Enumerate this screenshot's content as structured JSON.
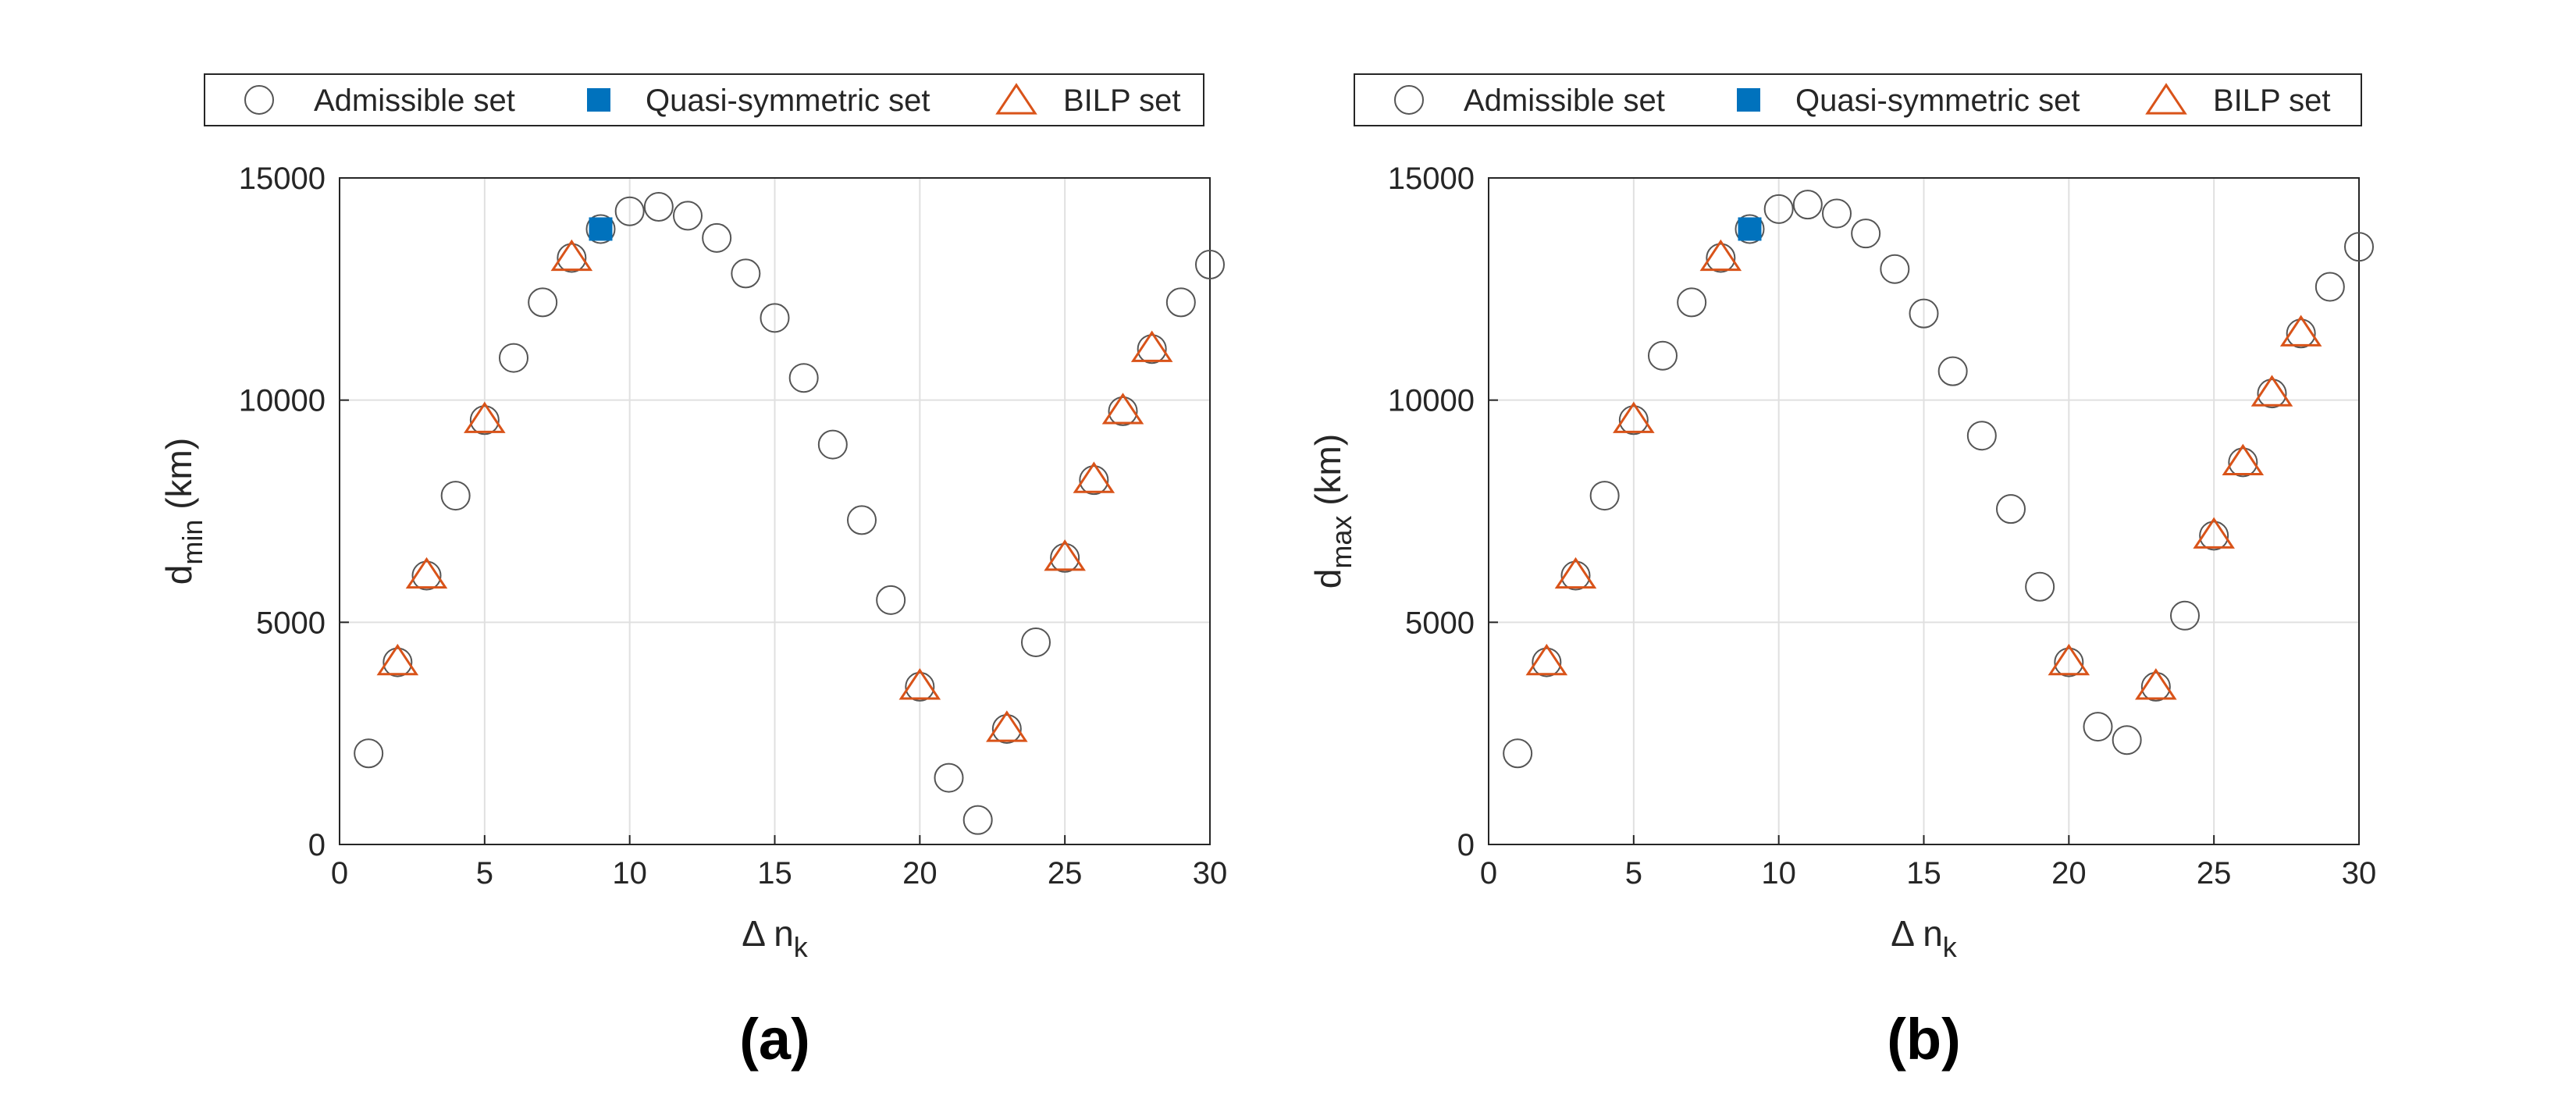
{
  "colors": {
    "admissible_edge": "#555555",
    "quasi_fill": "#0072BD",
    "bilp_edge": "#D95319",
    "grid": "#e0e0e0",
    "axis": "#262626"
  },
  "chart_data": [
    {
      "type": "scatter",
      "panel_label": "(a)",
      "xlabel": {
        "main": "Δ n",
        "sub": "k"
      },
      "ylabel": {
        "main": "d",
        "sub": "min",
        "rest": " (km)"
      },
      "xlim": [
        0,
        30
      ],
      "ylim": [
        0,
        15000
      ],
      "xticks": [
        "0",
        "5",
        "10",
        "15",
        "20",
        "25",
        "30"
      ],
      "yticks": [
        "0",
        "5000",
        "10000",
        "15000"
      ],
      "grid": true,
      "legend": {
        "placement": "top",
        "entries": [
          "Admissible set",
          "Quasi-symmetric set",
          "BILP set"
        ]
      },
      "series": [
        {
          "name": "Admissible set",
          "marker": "circle",
          "x": [
            1,
            2,
            3,
            4,
            5,
            6,
            7,
            8,
            9,
            10,
            11,
            12,
            13,
            14,
            15,
            16,
            17,
            18,
            19,
            20,
            21,
            22,
            23,
            24,
            25,
            26,
            27,
            28,
            29,
            30
          ],
          "y": [
            2050,
            4100,
            6050,
            7850,
            9550,
            10950,
            12200,
            13200,
            13850,
            14250,
            14350,
            14150,
            13650,
            12850,
            11850,
            10500,
            9000,
            7300,
            5500,
            3550,
            1500,
            550,
            2600,
            4550,
            6450,
            8200,
            9750,
            11150,
            12200,
            13050
          ]
        },
        {
          "name": "Quasi-symmetric set",
          "marker": "square",
          "x": [
            9
          ],
          "y": [
            13850
          ]
        },
        {
          "name": "BILP set",
          "marker": "triangle",
          "x": [
            2,
            3,
            5,
            8,
            20,
            23,
            25,
            26,
            27,
            28
          ],
          "y": [
            4100,
            6050,
            9550,
            13200,
            3550,
            2600,
            6450,
            8200,
            9750,
            11150
          ]
        }
      ]
    },
    {
      "type": "scatter",
      "panel_label": "(b)",
      "xlabel": {
        "main": "Δ n",
        "sub": "k"
      },
      "ylabel": {
        "main": "d",
        "sub": "max",
        "rest": " (km)"
      },
      "xlim": [
        0,
        30
      ],
      "ylim": [
        0,
        15000
      ],
      "xticks": [
        "0",
        "5",
        "10",
        "15",
        "20",
        "25",
        "30"
      ],
      "yticks": [
        "0",
        "5000",
        "10000",
        "15000"
      ],
      "grid": true,
      "legend": {
        "placement": "top",
        "entries": [
          "Admissible set",
          "Quasi-symmetric set",
          "BILP set"
        ]
      },
      "series": [
        {
          "name": "Admissible set",
          "marker": "circle",
          "x": [
            1,
            2,
            3,
            4,
            5,
            6,
            7,
            8,
            9,
            10,
            11,
            12,
            13,
            14,
            15,
            16,
            17,
            18,
            19,
            20,
            21,
            22,
            23,
            24,
            25,
            26,
            27,
            28,
            29,
            30
          ],
          "y": [
            2050,
            4100,
            6050,
            7850,
            9550,
            11000,
            12200,
            13200,
            13850,
            14300,
            14400,
            14200,
            13750,
            12950,
            11950,
            10650,
            9200,
            7550,
            5800,
            4100,
            2650,
            2350,
            3550,
            5150,
            6950,
            8600,
            10150,
            11500,
            12550,
            13450
          ]
        },
        {
          "name": "Quasi-symmetric set",
          "marker": "square",
          "x": [
            9
          ],
          "y": [
            13850
          ]
        },
        {
          "name": "BILP set",
          "marker": "triangle",
          "x": [
            2,
            3,
            5,
            8,
            20,
            23,
            25,
            26,
            27,
            28
          ],
          "y": [
            4100,
            6050,
            9550,
            13200,
            4100,
            3550,
            6950,
            8600,
            10150,
            11500
          ]
        }
      ]
    }
  ]
}
